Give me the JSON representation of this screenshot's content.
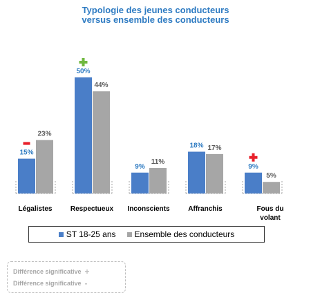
{
  "chart_data": {
    "type": "bar",
    "title": [
      "Typologie des jeunes conducteurs",
      "versus ensemble des conducteurs"
    ],
    "categories": [
      "Légalistes",
      "Respectueux",
      "Inconscients",
      "Affranchis",
      "Fous du volant"
    ],
    "series": [
      {
        "name": "ST 18-25 ans",
        "values": [
          15,
          50,
          9,
          18,
          9
        ],
        "labels": [
          "15%",
          "50%",
          "9%",
          "18%",
          "9%"
        ],
        "color": "#4A7EC8",
        "label_color": "#2E7BC2"
      },
      {
        "name": "Ensemble des conducteurs",
        "values": [
          23,
          44,
          11,
          17,
          5
        ],
        "labels": [
          "23%",
          "44%",
          "11%",
          "17%",
          "5%"
        ],
        "color": "#A6A6A6",
        "label_color": "#595959"
      }
    ],
    "significance_markers": [
      {
        "category": "Légalistes",
        "symbol": "-",
        "color": "#E8202A"
      },
      {
        "category": "Respectueux",
        "symbol": "+",
        "color": "#70B83F"
      },
      {
        "category": "Fous du volant",
        "symbol": "+",
        "color": "#E8202A"
      }
    ],
    "ylim": [
      0,
      55
    ],
    "xlabel": "",
    "ylabel": "",
    "grid": false,
    "legend_position": "bottom"
  },
  "significance_legend": {
    "positive_label": "Différence significative",
    "positive_symbol": "+",
    "negative_label": "Différence significative",
    "negative_symbol": "-"
  }
}
